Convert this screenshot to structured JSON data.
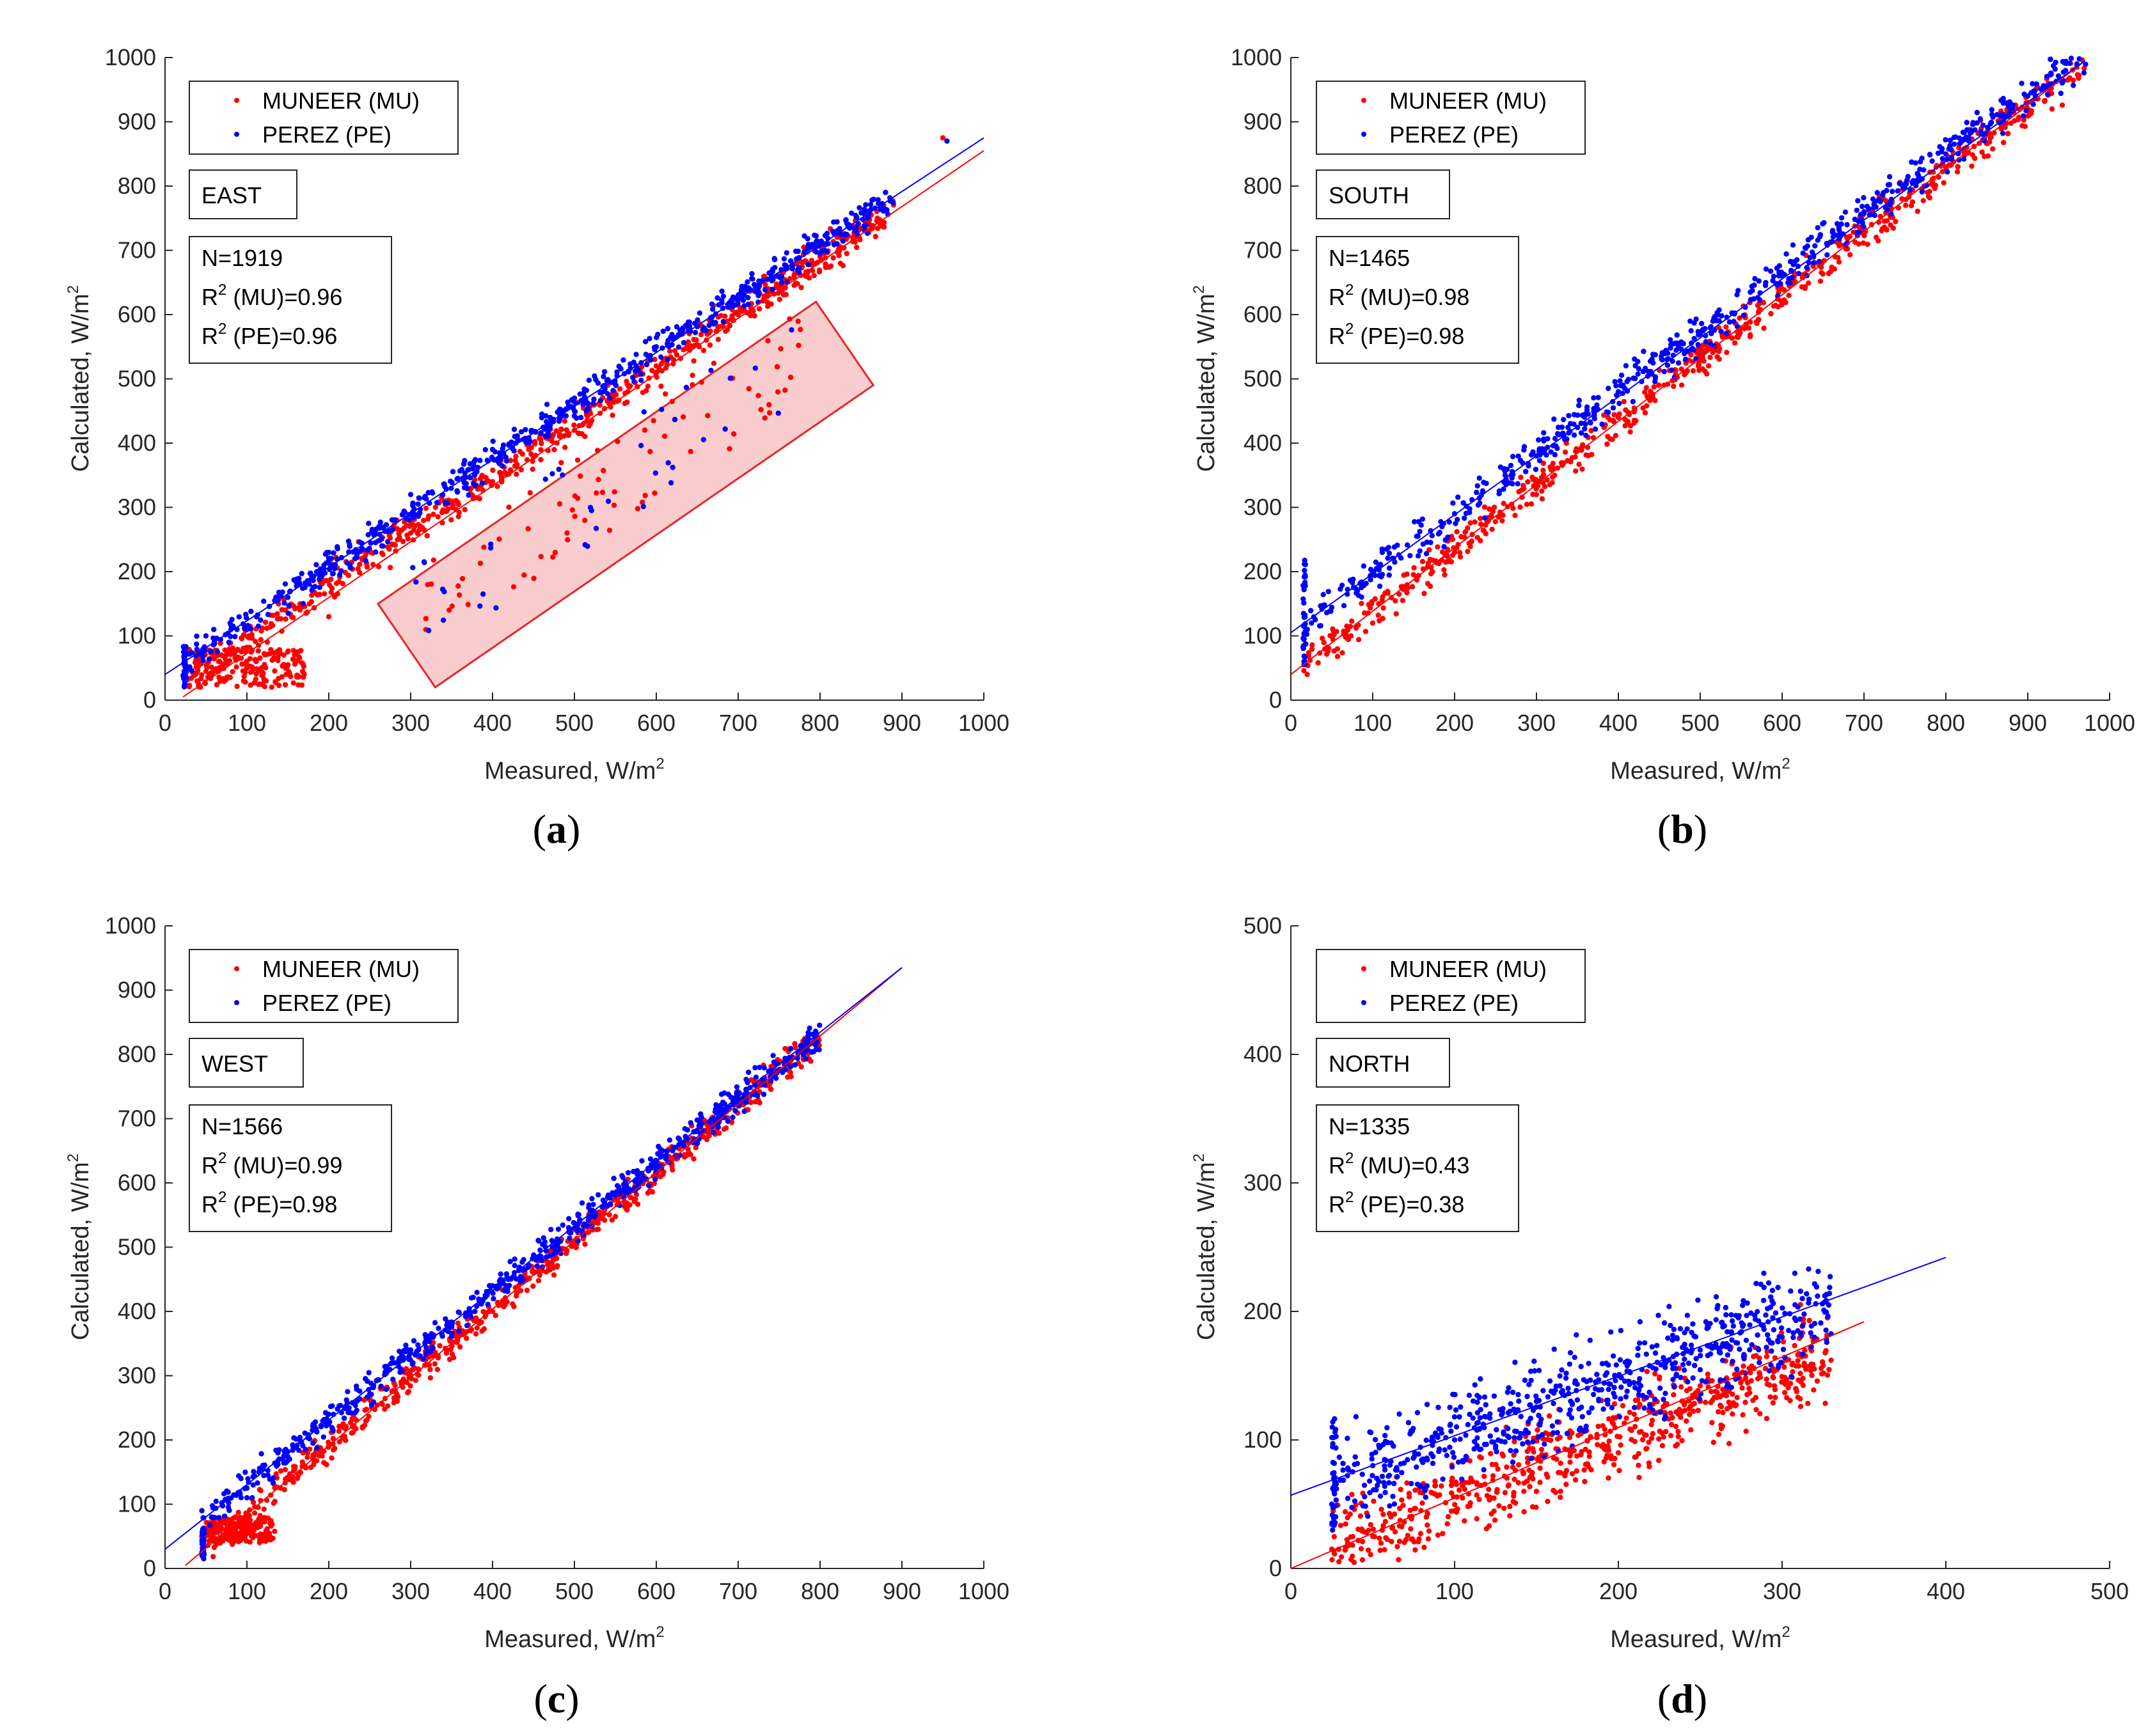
{
  "colors": {
    "mu": "#ff0000",
    "pe": "#0000ff",
    "axis": "#262626",
    "highlight_fill": "#f8c4c4",
    "highlight_stroke": "#e8262a"
  },
  "legend": {
    "mu": "MUNEER (MU)",
    "pe": "PEREZ (PE)"
  },
  "axes_text": {
    "xlabel": "Measured, W/m",
    "ylabel": "Calculated, W/m",
    "unit_sup": "2",
    "r2_symbol": "R",
    "r2_sup": "2"
  },
  "chart_data": [
    {
      "type": "scatter",
      "panel": "a",
      "direction": "EAST",
      "n_text": "N=1919",
      "r2_mu_text": " (MU)=0.96",
      "r2_pe_text": " (PE)=0.96",
      "xlim": [
        0,
        1000
      ],
      "ylim": [
        0,
        1000
      ],
      "xticks": [
        "0",
        "100",
        "200",
        "300",
        "400",
        "500",
        "600",
        "700",
        "800",
        "900",
        "1000"
      ],
      "yticks": [
        "0",
        "100",
        "200",
        "300",
        "400",
        "500",
        "600",
        "700",
        "800",
        "900",
        "1000"
      ],
      "highlight_region": [
        [
          260,
          150
        ],
        [
          330,
          20
        ],
        [
          865,
          490
        ],
        [
          795,
          620
        ]
      ],
      "fit_lines": {
        "mu": [
          [
            22,
            5
          ],
          [
            1000,
            855
          ]
        ],
        "pe": [
          [
            0,
            40
          ],
          [
            1000,
            875
          ]
        ]
      },
      "cluster_params": {
        "min_x": 22,
        "max_x": 890,
        "mu": {
          "slope": 0.85,
          "intercept": 8,
          "spread": 40
        },
        "pe": {
          "slope": 0.835,
          "intercept": 40,
          "spread": 35
        },
        "mu_low_cluster": {
          "x": [
            25,
            170
          ],
          "y": [
            20,
            80
          ]
        },
        "outliers_in_region": {
          "x": [
            300,
            780
          ],
          "offset": [
            -200,
            -40
          ]
        }
      },
      "series": [
        {
          "name": "MUNEER (MU)",
          "points": [
            [
              25,
              30
            ],
            [
              50,
              45
            ],
            [
              100,
              50
            ],
            [
              150,
              55
            ],
            [
              200,
              130
            ],
            [
              300,
              260
            ],
            [
              400,
              340
            ],
            [
              500,
              420
            ],
            [
              600,
              520
            ],
            [
              700,
              600
            ],
            [
              800,
              690
            ],
            [
              870,
              750
            ],
            [
              950,
              875
            ]
          ]
        },
        {
          "name": "PEREZ (PE)",
          "points": [
            [
              25,
              80
            ],
            [
              50,
              100
            ],
            [
              100,
              110
            ],
            [
              150,
              160
            ],
            [
              200,
              230
            ],
            [
              300,
              320
            ],
            [
              400,
              390
            ],
            [
              500,
              470
            ],
            [
              600,
              550
            ],
            [
              700,
              630
            ],
            [
              800,
              710
            ],
            [
              880,
              790
            ],
            [
              955,
              870
            ]
          ]
        }
      ]
    },
    {
      "type": "scatter",
      "panel": "b",
      "direction": "SOUTH",
      "n_text": "N=1465",
      "r2_mu_text": " (MU)=0.98",
      "r2_pe_text": " (PE)=0.98",
      "xlim": [
        0,
        1000
      ],
      "ylim": [
        0,
        1000
      ],
      "xticks": [
        "0",
        "100",
        "200",
        "300",
        "400",
        "500",
        "600",
        "700",
        "800",
        "900",
        "1000"
      ],
      "yticks": [
        "0",
        "100",
        "200",
        "300",
        "400",
        "500",
        "600",
        "700",
        "800",
        "900",
        "1000"
      ],
      "fit_lines": {
        "mu": [
          [
            0,
            40
          ],
          [
            970,
            995
          ]
        ],
        "pe": [
          [
            0,
            105
          ],
          [
            970,
            995
          ]
        ]
      },
      "cluster_params": {
        "min_x": 15,
        "max_x": 975,
        "mu": {
          "slope": 0.985,
          "intercept": 40,
          "spread": 45
        },
        "pe": {
          "slope": 0.93,
          "intercept": 105,
          "spread": 45
        }
      },
      "series": [
        {
          "name": "MUNEER (MU)",
          "points": [
            [
              20,
              40
            ],
            [
              100,
              120
            ],
            [
              200,
              230
            ],
            [
              300,
              340
            ],
            [
              400,
              440
            ],
            [
              500,
              540
            ],
            [
              600,
              640
            ],
            [
              700,
              735
            ],
            [
              800,
              830
            ],
            [
              900,
              930
            ],
            [
              960,
              985
            ]
          ]
        },
        {
          "name": "PEREZ (PE)",
          "points": [
            [
              20,
              110
            ],
            [
              100,
              200
            ],
            [
              200,
              290
            ],
            [
              300,
              380
            ],
            [
              400,
              480
            ],
            [
              500,
              570
            ],
            [
              600,
              660
            ],
            [
              700,
              760
            ],
            [
              800,
              850
            ],
            [
              900,
              940
            ],
            [
              960,
              990
            ]
          ]
        }
      ]
    },
    {
      "type": "scatter",
      "panel": "c",
      "direction": "WEST",
      "n_text": "N=1566",
      "r2_mu_text": " (MU)=0.99",
      "r2_pe_text": " (PE)=0.98",
      "xlim": [
        0,
        1000
      ],
      "ylim": [
        0,
        1000
      ],
      "xticks": [
        "0",
        "100",
        "200",
        "300",
        "400",
        "500",
        "600",
        "700",
        "800",
        "900",
        "1000"
      ],
      "yticks": [
        "0",
        "100",
        "200",
        "300",
        "400",
        "500",
        "600",
        "700",
        "800",
        "900",
        "1000"
      ],
      "fit_lines": {
        "mu": [
          [
            25,
            5
          ],
          [
            900,
            935
          ]
        ],
        "pe": [
          [
            0,
            30
          ],
          [
            900,
            935
          ]
        ]
      },
      "cluster_params": {
        "min_x": 45,
        "max_x": 800,
        "mu": {
          "slope": 1.06,
          "intercept": -20,
          "spread": 35
        },
        "pe": {
          "slope": 1.0,
          "intercept": 30,
          "spread": 35
        },
        "mu_low_cluster": {
          "x": [
            50,
            135
          ],
          "y": [
            40,
            80
          ]
        }
      },
      "series": [
        {
          "name": "MUNEER (MU)",
          "points": [
            [
              45,
              50
            ],
            [
              100,
              55
            ],
            [
              200,
              190
            ],
            [
              300,
              300
            ],
            [
              400,
              400
            ],
            [
              500,
              510
            ],
            [
              600,
              610
            ],
            [
              700,
              720
            ],
            [
              780,
              800
            ]
          ]
        },
        {
          "name": "PEREZ (PE)",
          "points": [
            [
              45,
              90
            ],
            [
              100,
              110
            ],
            [
              200,
              240
            ],
            [
              300,
              340
            ],
            [
              400,
              440
            ],
            [
              500,
              530
            ],
            [
              600,
              630
            ],
            [
              700,
              730
            ],
            [
              780,
              800
            ]
          ]
        }
      ]
    },
    {
      "type": "scatter",
      "panel": "d",
      "direction": "NORTH",
      "n_text": "N=1335",
      "r2_mu_text": " (MU)=0.43",
      "r2_pe_text": " (PE)=0.38",
      "xlim": [
        0,
        500
      ],
      "ylim": [
        0,
        500
      ],
      "xticks": [
        "0",
        "100",
        "200",
        "300",
        "400",
        "500"
      ],
      "yticks": [
        "0",
        "100",
        "200",
        "300",
        "400",
        "500"
      ],
      "fit_lines": {
        "mu": [
          [
            0,
            0
          ],
          [
            350,
            192
          ]
        ],
        "pe": [
          [
            0,
            57
          ],
          [
            400,
            242
          ]
        ]
      },
      "cluster_params": {
        "min_x": 25,
        "max_x": 330,
        "mu": {
          "slope": 0.5,
          "intercept": 5,
          "spread": 50
        },
        "pe": {
          "slope": 0.45,
          "intercept": 57,
          "spread": 55
        }
      },
      "series": [
        {
          "name": "MUNEER (MU)",
          "points": [
            [
              25,
              15
            ],
            [
              50,
              25
            ],
            [
              100,
              45
            ],
            [
              150,
              60
            ],
            [
              200,
              90
            ],
            [
              250,
              130
            ],
            [
              300,
              160
            ]
          ]
        },
        {
          "name": "PEREZ (PE)",
          "points": [
            [
              25,
              50
            ],
            [
              50,
              80
            ],
            [
              100,
              100
            ],
            [
              150,
              130
            ],
            [
              200,
              150
            ],
            [
              250,
              170
            ],
            [
              300,
              180
            ]
          ]
        }
      ]
    }
  ]
}
